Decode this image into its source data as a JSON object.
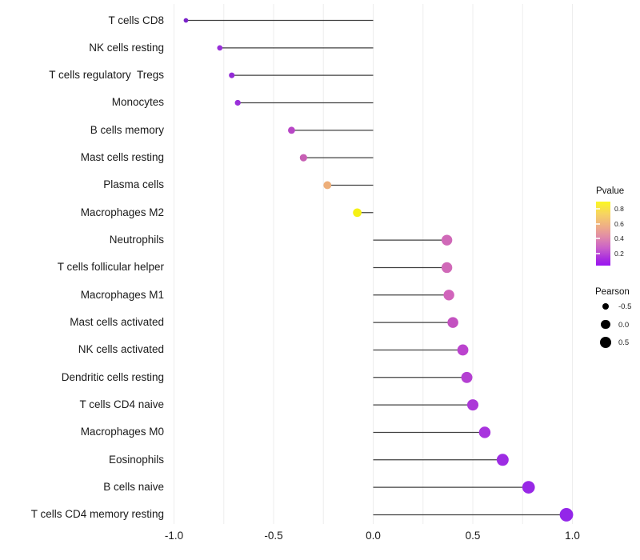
{
  "chart_data": {
    "type": "scatter",
    "variant": "lollipop",
    "title": "",
    "xlabel": "",
    "ylabel": "",
    "categories": [
      "T cells CD8",
      "NK cells resting",
      "T cells regulatory  Tregs",
      "Monocytes",
      "B cells memory",
      "Mast cells resting",
      "Plasma cells",
      "Macrophages M2",
      "Neutrophils",
      "T cells follicular helper",
      "Macrophages M1",
      "Mast cells activated",
      "NK cells activated",
      "Dendritic cells resting",
      "T cells CD4 naive",
      "Macrophages M0",
      "Eosinophils",
      "B cells naive",
      "T cells CD4 memory resting"
    ],
    "series": [
      {
        "name": "Pearson correlation",
        "values": [
          -0.94,
          -0.77,
          -0.71,
          -0.68,
          -0.41,
          -0.35,
          -0.23,
          -0.08,
          0.37,
          0.37,
          0.38,
          0.4,
          0.45,
          0.47,
          0.5,
          0.56,
          0.65,
          0.78,
          0.97
        ],
        "point_colors": [
          "#7A22C9",
          "#982FD9",
          "#932BD6",
          "#9A30DA",
          "#B846C6",
          "#C75FB4",
          "#EDAE79",
          "#F5F115",
          "#D069B8",
          "#D069B8",
          "#D164BB",
          "#C351C0",
          "#BB43CE",
          "#B440D2",
          "#AC38D8",
          "#A834DE",
          "#9D2CE3",
          "#9828E6",
          "#9326E9"
        ]
      }
    ],
    "x_ticks": {
      "labels": [
        "-1.0",
        "-0.5",
        "0.0",
        "0.5",
        "1.0"
      ],
      "values": [
        -1,
        -0.5,
        0,
        0.5,
        1
      ]
    },
    "xlim": [
      -1.05,
      1.06
    ],
    "baseline": 0,
    "grid": "vertical gridlines every 0.25, no horizontal gridlines",
    "legend_position": "right"
  },
  "legend": {
    "pvalue": {
      "title": "Pvalue",
      "tick_labels": [
        "0.8",
        "0.6",
        "0.4",
        "0.2"
      ],
      "gradient_top_to_bottom": [
        "#FBF721",
        "#F6D264",
        "#EFAF85",
        "#E18BA8",
        "#CB62C8",
        "#A82BE0",
        "#9A15F2"
      ]
    },
    "pearson": {
      "title": "Pearson",
      "items": [
        {
          "label": "-0.5",
          "value": -0.5
        },
        {
          "label": "0.0",
          "value": 0.0
        },
        {
          "label": "0.5",
          "value": 0.5
        }
      ],
      "dot_color": "#000000"
    }
  },
  "colors": {
    "segment": "#404040",
    "grid": "#EDEDED",
    "text": "#1a1a1a",
    "background": "#ffffff"
  }
}
